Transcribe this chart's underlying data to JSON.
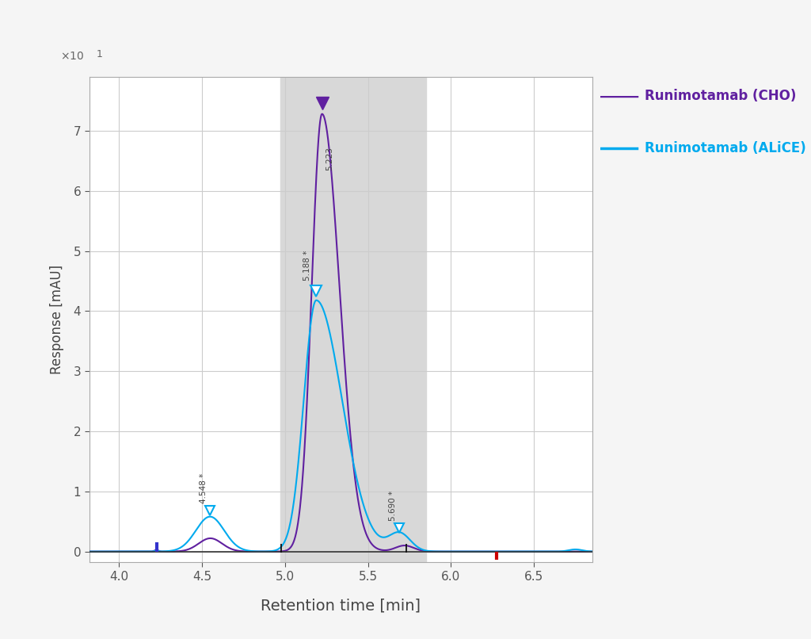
{
  "xlabel": "Retention time [min]",
  "ylabel": "Response [mAU]",
  "xlim": [
    3.82,
    6.85
  ],
  "ylim": [
    -0.18,
    7.9
  ],
  "yticks": [
    0,
    1,
    2,
    3,
    4,
    5,
    6,
    7
  ],
  "xticks": [
    4.0,
    4.5,
    5.0,
    5.5,
    6.0,
    6.5
  ],
  "bg_color": "#f5f5f5",
  "plot_bg_color": "#ffffff",
  "grid_color": "#cccccc",
  "highlight_xmin": 4.97,
  "highlight_xmax": 5.85,
  "highlight_color": "#d8d8d8",
  "cho_color": "#6020A0",
  "alice_color": "#00AAEE",
  "cho_label": "Runimotamab (CHO)",
  "alice_label": "Runimotamab (ALiCE)",
  "peak_cho_x": 5.223,
  "peak_cho_y": 7.28,
  "peak_alice_main_x": 5.188,
  "peak_alice_main_y": 4.18,
  "peak_alice_shoulder_x": 4.548,
  "peak_alice_shoulder_y": 0.58,
  "peak_alice_tail_x": 5.69,
  "peak_alice_tail_y": 0.3,
  "blue_tick_x": 4.225,
  "red_tick_x": 6.275,
  "dark_line_x1": 4.975,
  "dark_line_x2": 5.73
}
